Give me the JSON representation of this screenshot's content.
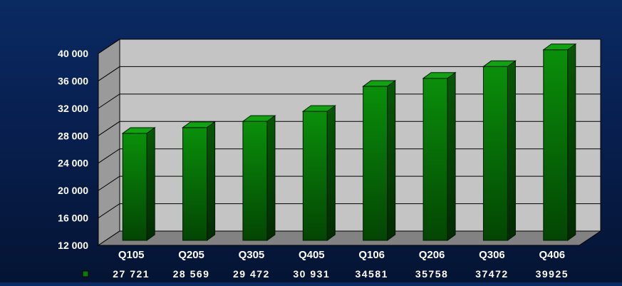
{
  "chart_data": {
    "type": "bar",
    "categories": [
      "Q105",
      "Q205",
      "Q305",
      "Q405",
      "Q106",
      "Q206",
      "Q306",
      "Q406"
    ],
    "values": [
      27721,
      28569,
      29472,
      30931,
      34581,
      35758,
      37472,
      39925
    ],
    "value_labels": [
      "27 721",
      "28 569",
      "29 472",
      "30 931",
      "34581",
      "35758",
      "37472",
      "39925"
    ],
    "y_ticks": [
      "12 000",
      "16 000",
      "20 000",
      "24 000",
      "28 000",
      "32 000",
      "36 000",
      "40 000"
    ],
    "ylim": [
      12000,
      40000
    ],
    "grid": true,
    "legend": "bottom-left (data table)",
    "colors": {
      "bar": "#0a8a0a",
      "bar_side": "#053f05",
      "bar_top": "#0fa30f",
      "wall": "#c4c4c4",
      "floor": "#828282",
      "text": "#ffffff"
    }
  }
}
